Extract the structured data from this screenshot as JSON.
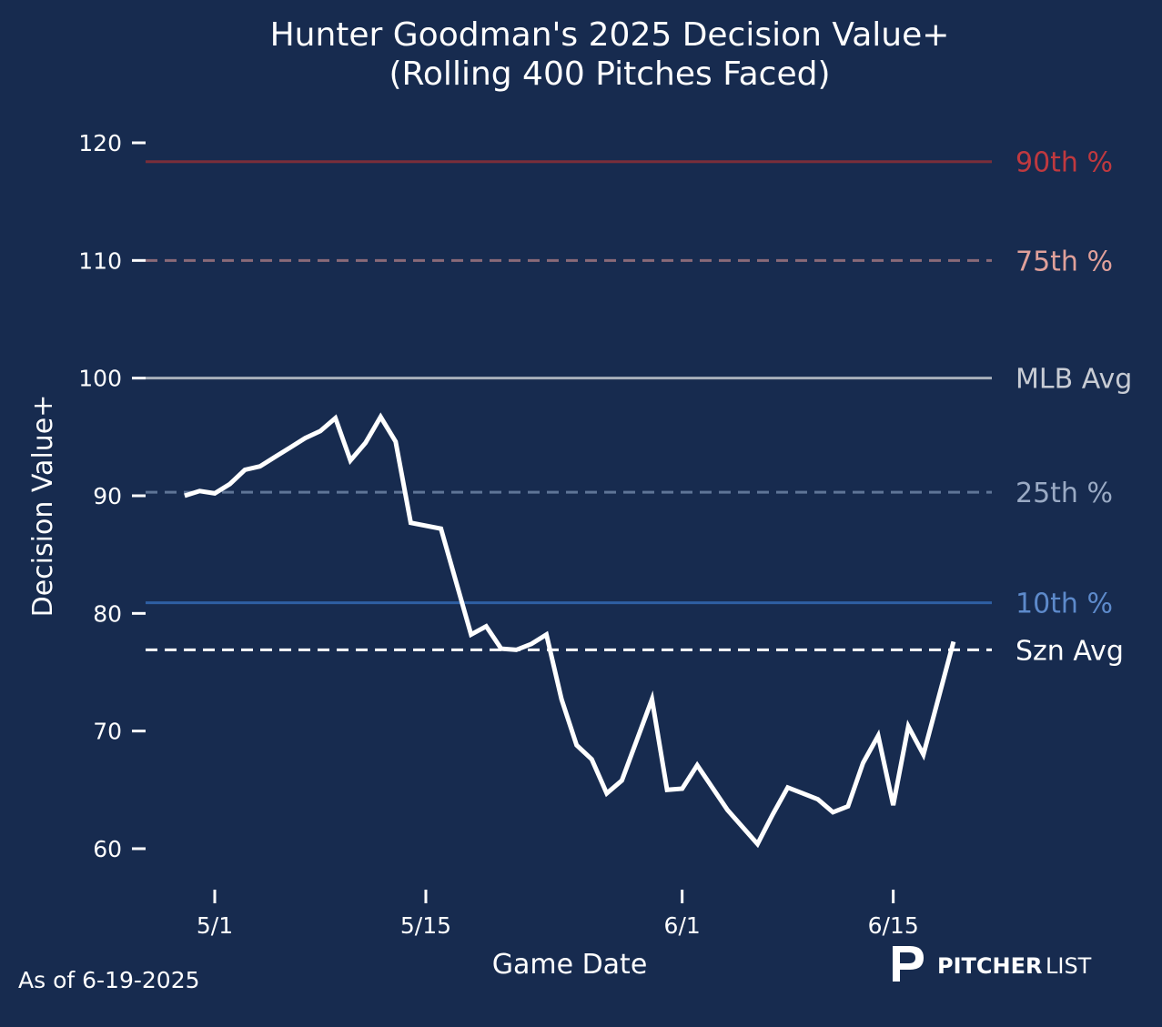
{
  "chart_data": {
    "type": "line",
    "title_line1": "Hunter Goodman's 2025 Decision Value+",
    "title_line2": "(Rolling 400 Pitches Faced)",
    "xlabel": "Game Date",
    "ylabel": "Decision Value+",
    "ylim": [
      58,
      122
    ],
    "yticks": [
      60,
      70,
      80,
      90,
      100,
      110,
      120
    ],
    "xticks": [
      "5/1",
      "5/15",
      "6/1",
      "6/15"
    ],
    "xlim": [
      "4/26",
      "6/21"
    ],
    "series": [
      {
        "name": "Decision Value+",
        "color": "#ffffff",
        "x": [
          "4/29",
          "4/30",
          "5/1",
          "5/2",
          "5/3",
          "5/4",
          "5/5",
          "5/6",
          "5/7",
          "5/8",
          "5/9",
          "5/10",
          "5/11",
          "5/12",
          "5/13",
          "5/14",
          "5/16",
          "5/18",
          "5/19",
          "5/20",
          "5/21",
          "5/22",
          "5/23",
          "5/24",
          "5/25",
          "5/26",
          "5/27",
          "5/28",
          "5/30",
          "5/31",
          "6/1",
          "6/2",
          "6/4",
          "6/6",
          "6/7",
          "6/8",
          "6/10",
          "6/11",
          "6/12",
          "6/13",
          "6/14",
          "6/15",
          "6/16",
          "6/17",
          "6/19"
        ],
        "y": [
          90.0,
          90.4,
          90.2,
          91.0,
          92.2,
          92.5,
          93.3,
          94.1,
          94.9,
          95.5,
          96.6,
          93.0,
          94.5,
          96.7,
          94.6,
          87.7,
          87.2,
          78.2,
          78.9,
          77.0,
          76.9,
          77.4,
          78.2,
          72.7,
          68.8,
          67.6,
          64.7,
          65.8,
          72.7,
          65.0,
          65.1,
          67.1,
          63.3,
          60.4,
          62.9,
          65.2,
          64.2,
          63.1,
          63.6,
          67.3,
          69.6,
          63.7,
          70.4,
          68.0,
          77.6
        ]
      }
    ],
    "reference_lines": [
      {
        "label": "90th %",
        "value": 118.4,
        "color": "#7a2e3a",
        "label_color": "#c0393f",
        "dashed": false
      },
      {
        "label": "75th %",
        "value": 110.0,
        "color": "#8a6a78",
        "label_color": "#e0a09a",
        "dashed": true
      },
      {
        "label": "MLB Avg",
        "value": 100.0,
        "color": "#a9b0bb",
        "label_color": "#c8ccd4",
        "dashed": false
      },
      {
        "label": "25th %",
        "value": 90.3,
        "color": "#5f7597",
        "label_color": "#9aaac4",
        "dashed": true
      },
      {
        "label": "10th %",
        "value": 80.9,
        "color": "#2e5fa3",
        "label_color": "#5d8acb",
        "dashed": false
      },
      {
        "label": "Szn Avg",
        "value": 76.9,
        "color": "#ffffff",
        "label_color": "#ffffff",
        "dashed": true
      }
    ]
  },
  "footer": {
    "as_of": "As of 6-19-2025"
  },
  "logo": {
    "text_bold": "PITCHER",
    "text_light": "LIST"
  },
  "colors": {
    "background": "#172b4f"
  }
}
